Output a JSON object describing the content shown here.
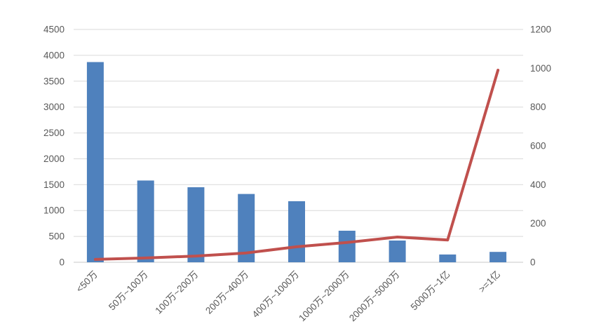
{
  "chart_data": {
    "type": "combo",
    "title": "",
    "categories": [
      "<50万",
      "50万~100万",
      "100万~200万",
      "200万~400万",
      "400万~1000万",
      "1000万~2000万",
      "2000万~5000万",
      "5000万~1亿",
      ">=1亿"
    ],
    "series": [
      {
        "name": "bars",
        "type": "bar",
        "axis": "left",
        "values": [
          3870,
          1580,
          1450,
          1320,
          1180,
          610,
          420,
          150,
          200
        ]
      },
      {
        "name": "line",
        "type": "line",
        "axis": "right",
        "values": [
          15,
          22,
          32,
          48,
          80,
          102,
          130,
          115,
          990
        ]
      }
    ],
    "left_axis": {
      "min": 0,
      "max": 4500,
      "step": 500,
      "tick_labels": [
        "0",
        "500",
        "1000",
        "1500",
        "2000",
        "2500",
        "3000",
        "3500",
        "4000",
        "4500"
      ]
    },
    "right_axis": {
      "min": 0,
      "max": 1200,
      "step": 200,
      "tick_labels": [
        "0",
        "200",
        "400",
        "600",
        "800",
        "1000",
        "1200"
      ]
    },
    "legend": "none",
    "grid": "horizontal",
    "colors": {
      "bar": "#4F81BD",
      "line": "#C0504D",
      "gridline": "#D9D9D9",
      "axis_line": "#C9C9C9",
      "axis_text": "#595959",
      "background": "#FFFFFF"
    }
  }
}
